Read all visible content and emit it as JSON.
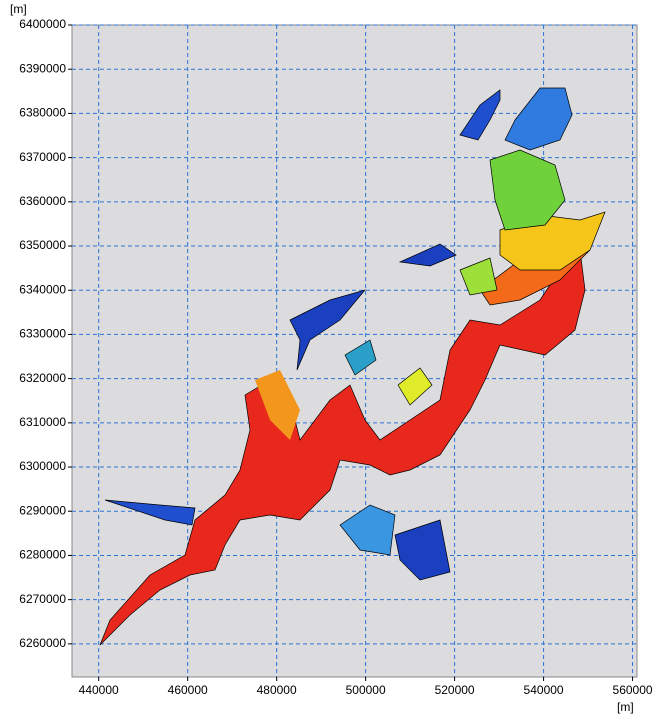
{
  "chart_data": {
    "type": "map",
    "x_unit": "[m]",
    "y_unit": "[m]",
    "xlim": [
      434000,
      561000
    ],
    "ylim": [
      6252500,
      6400000
    ],
    "xticks": [
      440000,
      460000,
      480000,
      500000,
      520000,
      540000,
      560000
    ],
    "yticks": [
      6260000,
      6270000,
      6280000,
      6290000,
      6300000,
      6310000,
      6320000,
      6330000,
      6340000,
      6350000,
      6360000,
      6370000,
      6380000,
      6390000,
      6400000
    ],
    "grid": true
  }
}
